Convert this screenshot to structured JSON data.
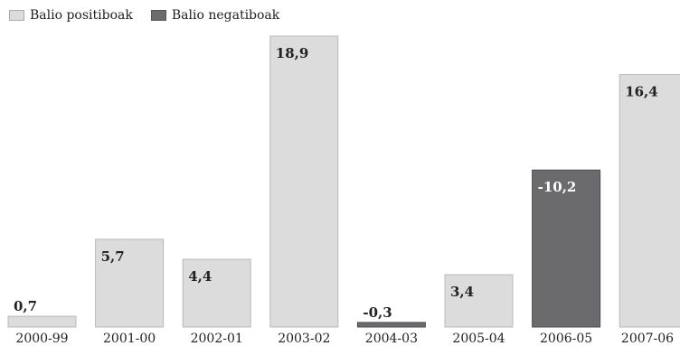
{
  "chart_data": {
    "type": "bar",
    "categories": [
      "2000-99",
      "2001-00",
      "2002-01",
      "2003-02",
      "2004-03",
      "2005-04",
      "2006-05",
      "2007-06"
    ],
    "values": [
      0.7,
      5.7,
      4.4,
      18.9,
      -0.3,
      3.4,
      -10.2,
      16.4
    ],
    "data_labels": [
      "0,7",
      "5,7",
      "4,4",
      "18,9",
      "-0,3",
      "3,4",
      "-10,2",
      "16,4"
    ],
    "legend": [
      {
        "label": "Balio positiboak",
        "color": "#dcdcdc"
      },
      {
        "label": "Balio negatiboak",
        "color": "#6b6b6d"
      }
    ],
    "colors": {
      "positive": "#dcdcdc",
      "negative": "#6b6b6d",
      "positive_label": "#222222",
      "negative_label": "#ffffff"
    },
    "grid": false,
    "legend_position": "top-left"
  }
}
